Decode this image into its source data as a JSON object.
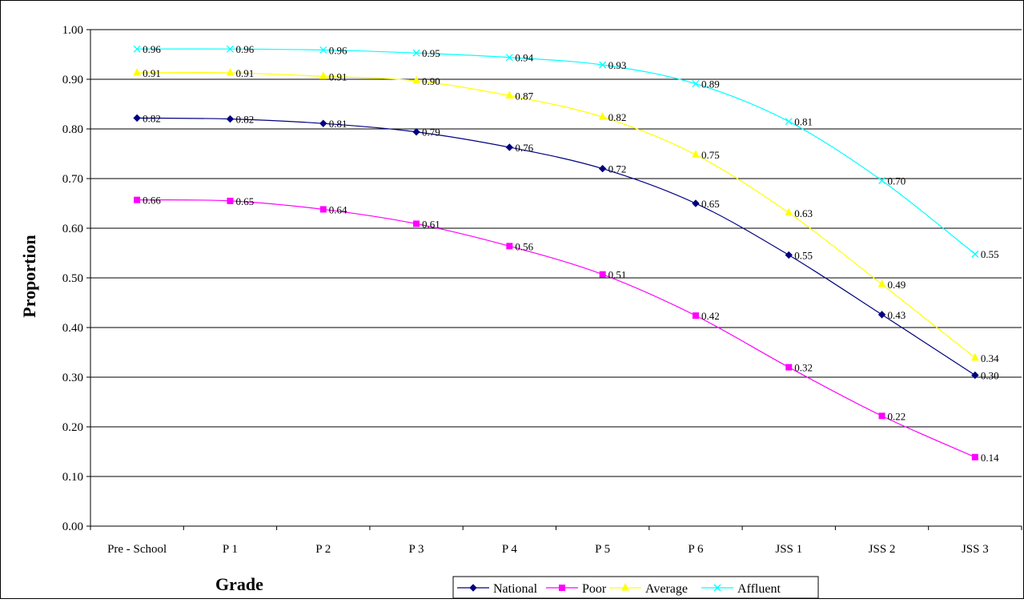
{
  "chart_data": {
    "type": "line",
    "title": "",
    "xlabel": "Grade",
    "ylabel": "Proportion",
    "categories": [
      "Pre - School",
      "P 1",
      "P 2",
      "P 3",
      "P 4",
      "P 5",
      "P 6",
      "JSS 1",
      "JSS 2",
      "JSS 3"
    ],
    "ylim": [
      0,
      1
    ],
    "yticks": [
      "0.00",
      "0.10",
      "0.20",
      "0.30",
      "0.40",
      "0.50",
      "0.60",
      "0.70",
      "0.80",
      "0.90",
      "1.00"
    ],
    "grid": "horizontal",
    "legend_position": "bottom",
    "series": [
      {
        "name": "National",
        "color": "#000080",
        "marker": "diamond",
        "values": [
          0.822,
          0.82,
          0.811,
          0.794,
          0.763,
          0.72,
          0.65,
          0.546,
          0.426,
          0.304
        ],
        "labels": [
          "0.82",
          "0.82",
          "0.81",
          "0.79",
          "0.76",
          "0.72",
          "0.65",
          "0.55",
          "0.43",
          "0.30"
        ]
      },
      {
        "name": "Poor",
        "color": "#FF00FF",
        "marker": "square",
        "values": [
          0.657,
          0.655,
          0.638,
          0.609,
          0.564,
          0.507,
          0.424,
          0.32,
          0.222,
          0.139
        ],
        "labels": [
          "0.66",
          "0.65",
          "0.64",
          "0.61",
          "0.56",
          "0.51",
          "0.42",
          "0.32",
          "0.22",
          "0.14"
        ]
      },
      {
        "name": "Average",
        "color": "#FFFF00",
        "marker": "triangle",
        "values": [
          0.913,
          0.913,
          0.906,
          0.897,
          0.867,
          0.824,
          0.748,
          0.631,
          0.487,
          0.339
        ],
        "labels": [
          "0.91",
          "0.91",
          "0.91",
          "0.90",
          "0.87",
          "0.82",
          "0.75",
          "0.63",
          "0.49",
          "0.34"
        ]
      },
      {
        "name": "Affluent",
        "color": "#00FFFF",
        "marker": "x",
        "values": [
          0.961,
          0.961,
          0.959,
          0.953,
          0.944,
          0.929,
          0.891,
          0.815,
          0.696,
          0.548
        ],
        "labels": [
          "0.96",
          "0.96",
          "0.96",
          "0.95",
          "0.94",
          "0.93",
          "0.89",
          "0.81",
          "0.70",
          "0.55"
        ]
      }
    ]
  }
}
